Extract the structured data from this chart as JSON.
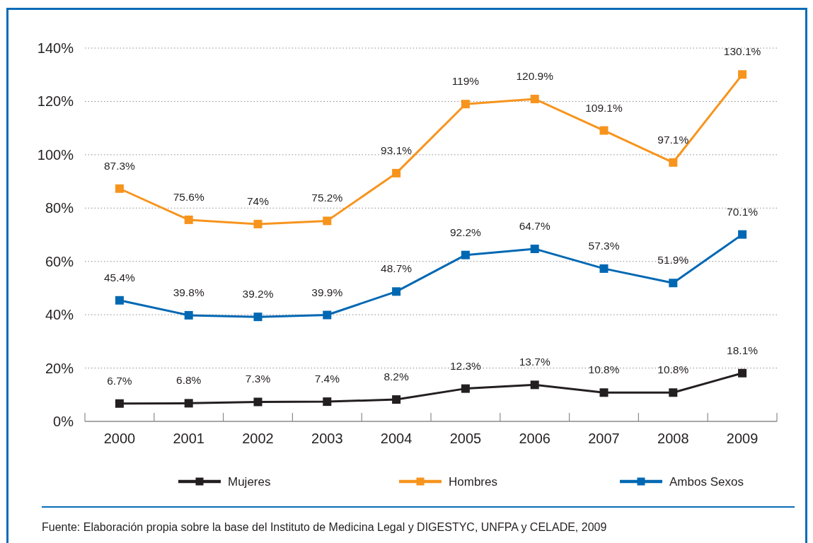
{
  "chart_data": {
    "type": "line",
    "categories": [
      "2000",
      "2001",
      "2002",
      "2003",
      "2004",
      "2005",
      "2006",
      "2007",
      "2008",
      "2009"
    ],
    "series": [
      {
        "name": "Mujeres",
        "color": "#231f20",
        "values": [
          6.7,
          6.8,
          7.3,
          7.4,
          8.2,
          12.3,
          13.7,
          10.8,
          10.8,
          18.1
        ],
        "value_labels": [
          "6.7%",
          "6.8%",
          "7.3%",
          "7.4%",
          "8.2%",
          "12.3%",
          "13.7%",
          "10.8%",
          "10.8%",
          "18.1%"
        ]
      },
      {
        "name": "Hombres",
        "color": "#f7941d",
        "values": [
          87.3,
          75.6,
          74,
          75.2,
          93.1,
          119,
          120.9,
          109.1,
          97.1,
          130.1
        ],
        "value_labels": [
          "87.3%",
          "75.6%",
          "74%",
          "75.2%",
          "93.1%",
          "119%",
          "120.9%",
          "109.1%",
          "97.1%",
          "130.1%"
        ]
      },
      {
        "name": "Ambos Sexos",
        "color": "#0068b3",
        "values": [
          45.4,
          39.8,
          39.2,
          39.9,
          48.7,
          62.4,
          64.7,
          57.3,
          51.9,
          70.1
        ],
        "value_labels": [
          "45.4%",
          "39.8%",
          "39.2%",
          "39.9%",
          "48.7%",
          null,
          "64.7%",
          "57.3%",
          "51.9%",
          "70.1%"
        ]
      }
    ],
    "ylim": [
      0,
      140
    ],
    "yticks": [
      {
        "value": 0,
        "label": "0%"
      },
      {
        "value": 20,
        "label": "20%"
      },
      {
        "value": 40,
        "label": "40%"
      },
      {
        "value": 60,
        "label": "60%"
      },
      {
        "value": 80,
        "label": "80%"
      },
      {
        "value": 100,
        "label": "100%"
      },
      {
        "value": 120,
        "label": "120%"
      },
      {
        "value": 140,
        "label": "140%"
      }
    ],
    "grid": "y",
    "legend": "bottom",
    "marker": "square",
    "line_style": "solid",
    "annotations": [
      {
        "text": "92.2%",
        "x": "2005",
        "y": 62.4
      },
      "Fuente: Elaboración propia sobre la base del Instituto de Medicina Legal y DIGESTYC, UNFPA y CELADE, 2009"
    ]
  }
}
